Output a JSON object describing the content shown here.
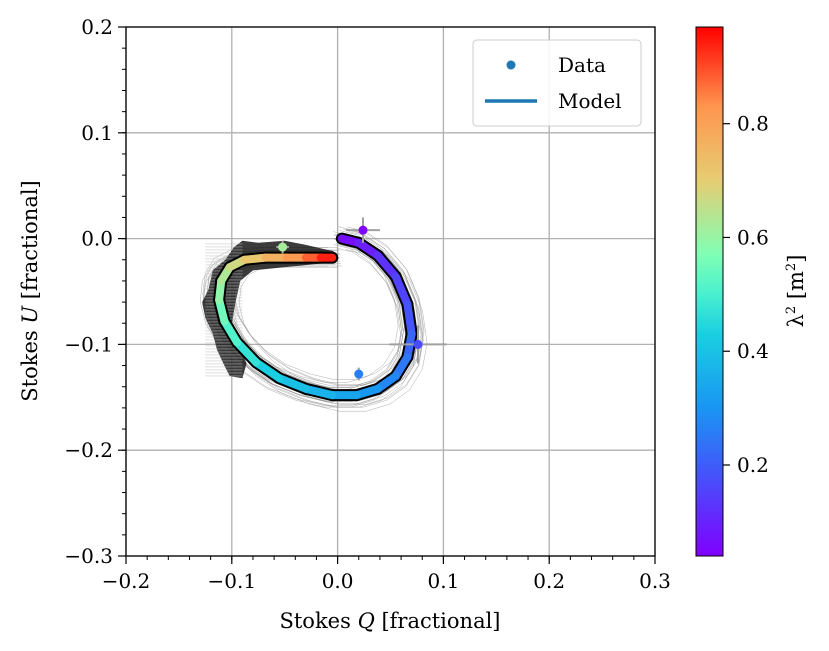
{
  "chart_data": {
    "type": "scatter",
    "xlabel": "Stokes Q [fractional]",
    "ylabel": "Stokes U [fractional]",
    "xlabel_parts": {
      "pre": "Stokes ",
      "var": "Q",
      "post": " [fractional]"
    },
    "ylabel_parts": {
      "pre": "Stokes ",
      "var": "U",
      "post": " [fractional]"
    },
    "xlim": [
      -0.2,
      0.3
    ],
    "ylim": [
      -0.3,
      0.2
    ],
    "xticks": [
      -0.2,
      -0.1,
      0.0,
      0.1,
      0.2,
      0.3
    ],
    "xtick_labels": [
      "−0.2",
      "−0.1",
      "0.0",
      "0.1",
      "0.2",
      "0.3"
    ],
    "yticks": [
      -0.3,
      -0.2,
      -0.1,
      0.0,
      0.1,
      0.2
    ],
    "ytick_labels": [
      "−0.3",
      "−0.2",
      "−0.1",
      "0.0",
      "0.1",
      "0.2"
    ],
    "grid": true,
    "legend": {
      "position": "top-right",
      "entries": [
        {
          "label": "Data",
          "marker": "point",
          "color": "#1f77b4"
        },
        {
          "label": "Model",
          "marker": "line",
          "color": "#1f77b4"
        }
      ]
    },
    "colorbar": {
      "label": "λ² [m²]",
      "label_parts": {
        "sym": "λ",
        "sup": "2",
        "mid": " [m",
        "sup2": "2",
        "end": "]"
      },
      "range": [
        0.04,
        0.97
      ],
      "ticks": [
        0.2,
        0.4,
        0.6,
        0.8
      ],
      "tick_labels": [
        "0.2",
        "0.4",
        "0.6",
        "0.8"
      ],
      "colormap": "rainbow"
    },
    "data_points": [
      {
        "q": 0.024,
        "u": 0.008,
        "lambda2": 0.045,
        "q_err": 0.016,
        "u_err": 0.012
      },
      {
        "q": 0.076,
        "u": -0.1,
        "lambda2": 0.17,
        "q_err": 0.027,
        "u_err": 0.018
      },
      {
        "q": 0.02,
        "u": -0.128,
        "lambda2": 0.26,
        "q_err": 0.004,
        "u_err": 0.006
      },
      {
        "q": -0.052,
        "u": -0.008,
        "lambda2": 0.62,
        "q_err": 0.006,
        "u_err": 0.006
      }
    ],
    "model_curve": {
      "q": [
        0.004,
        0.02,
        0.038,
        0.055,
        0.066,
        0.07,
        0.066,
        0.055,
        0.038,
        0.018,
        -0.005,
        -0.03,
        -0.055,
        -0.077,
        -0.095,
        -0.107,
        -0.112,
        -0.11,
        -0.102,
        -0.088,
        -0.068,
        -0.048,
        -0.03,
        -0.016,
        -0.005
      ],
      "u": [
        0.0,
        -0.004,
        -0.016,
        -0.036,
        -0.062,
        -0.09,
        -0.112,
        -0.13,
        -0.142,
        -0.148,
        -0.148,
        -0.142,
        -0.132,
        -0.117,
        -0.098,
        -0.078,
        -0.058,
        -0.04,
        -0.027,
        -0.02,
        -0.018,
        -0.018,
        -0.018,
        -0.018,
        -0.018
      ],
      "lambda2": [
        0.05,
        0.08,
        0.11,
        0.14,
        0.17,
        0.2,
        0.23,
        0.26,
        0.29,
        0.32,
        0.35,
        0.38,
        0.41,
        0.45,
        0.49,
        0.53,
        0.57,
        0.61,
        0.65,
        0.69,
        0.74,
        0.79,
        0.85,
        0.91,
        0.97
      ]
    },
    "posterior_samples": 36
  }
}
